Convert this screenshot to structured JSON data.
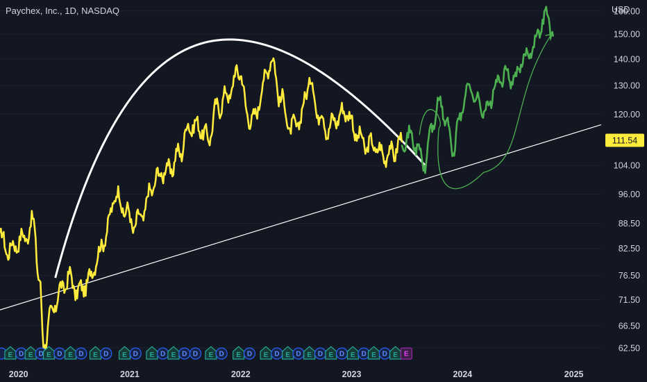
{
  "header": {
    "title": "Paychex, Inc., 1D, NASDAQ",
    "currency": "USD"
  },
  "price_badge": "111.54",
  "colors": {
    "background": "#131722",
    "historical_series": "#ffeb3b",
    "projection_series": "#4caf50",
    "arc": "#ffffff",
    "trendline": "#ffffff",
    "price_badge": "#ffeb3b",
    "dividend_badge": "#2962ff",
    "earnings_badge": "#26a69a",
    "upcoming_earnings_badge": "#9c27b0"
  },
  "chart_data": {
    "type": "line",
    "title": "Paychex, Inc., 1D, NASDAQ",
    "ylabel": "USD",
    "y_scale": "log",
    "ylim": [
      60,
      165
    ],
    "xlim": [
      "2019-11-01",
      "2025-04-01"
    ],
    "x_ticks": [
      "2020",
      "2021",
      "2022",
      "2023",
      "2024",
      "2025"
    ],
    "y_ticks": [
      "62.50",
      "66.50",
      "71.50",
      "76.50",
      "82.50",
      "88.50",
      "96.00",
      "104.00",
      "111.54",
      "120.00",
      "130.00",
      "140.00",
      "150.00",
      "160.00"
    ],
    "series": [
      {
        "role": "historical",
        "color": "#ffeb3b",
        "x": [
          "2019-11-01",
          "2019-12-01",
          "2020-01-01",
          "2020-02-01",
          "2020-02-20",
          "2020-03-10",
          "2020-03-23",
          "2020-04-15",
          "2020-05-15",
          "2020-06-15",
          "2020-07-15",
          "2020-08-15",
          "2020-09-15",
          "2020-10-15",
          "2020-11-15",
          "2020-12-15",
          "2021-01-15",
          "2021-02-15",
          "2021-03-15",
          "2021-04-15",
          "2021-05-15",
          "2021-06-15",
          "2021-07-15",
          "2021-08-15",
          "2021-09-15",
          "2021-10-15",
          "2021-11-15",
          "2021-12-31",
          "2022-01-20",
          "2022-02-15",
          "2022-03-15",
          "2022-04-10",
          "2022-05-15",
          "2022-06-15",
          "2022-07-15",
          "2022-08-15",
          "2022-09-15",
          "2022-10-15",
          "2022-11-15",
          "2022-12-15",
          "2023-01-15",
          "2023-02-15",
          "2023-03-15",
          "2023-04-15",
          "2023-05-15",
          "2023-06-15"
        ],
        "y": [
          85,
          82,
          84,
          86,
          89,
          75,
          63,
          68,
          73,
          76,
          73,
          75,
          80,
          86,
          96,
          92,
          88,
          91,
          98,
          102,
          103,
          108,
          116,
          116,
          112,
          122,
          126,
          136,
          120,
          118,
          130,
          140,
          125,
          115,
          118,
          132,
          120,
          115,
          119,
          121,
          114,
          110,
          110,
          107,
          108,
          111
        ]
      },
      {
        "role": "projection",
        "color": "#4caf50",
        "x": [
          "2023-06-15",
          "2023-07-15",
          "2023-08-10",
          "2023-08-31",
          "2023-09-20",
          "2023-10-20",
          "2023-11-10",
          "2023-12-01",
          "2023-12-20",
          "2024-01-20",
          "2024-02-20",
          "2024-03-20",
          "2024-04-20",
          "2024-05-20",
          "2024-06-20",
          "2024-07-20",
          "2024-08-20",
          "2024-09-20",
          "2024-10-05",
          "2024-10-25"
        ],
        "y": [
          111,
          113,
          108,
          104,
          116,
          124,
          117,
          108,
          118,
          130,
          124,
          121,
          130,
          134,
          132,
          140,
          145,
          155,
          159,
          149
        ]
      }
    ],
    "annotations": [
      {
        "kind": "arc",
        "from": [
          "2020-05-01",
          76
        ],
        "peak": [
          "2022-06-01",
          145
        ],
        "to": [
          "2023-08-31",
          104
        ]
      },
      {
        "kind": "trendline",
        "from": [
          "2019-11-01",
          69.5
        ],
        "to": [
          "2025-04-01",
          116.5
        ]
      },
      {
        "kind": "curved-arrow",
        "from": [
          "2023-10-15",
          120
        ],
        "via": [
          "2024-01-01",
          100
        ],
        "to": [
          "2024-10-20",
          150
        ]
      }
    ],
    "events": [
      {
        "date": "2019-11-05",
        "label": ""
      },
      {
        "date": "2019-12-05",
        "label": "E"
      },
      {
        "date": "2020-01-10",
        "label": "D"
      },
      {
        "date": "2020-02-10",
        "label": "E"
      },
      {
        "date": "2020-03-15",
        "label": "D"
      },
      {
        "date": "2020-04-10",
        "label": "E"
      },
      {
        "date": "2020-05-15",
        "label": "D"
      },
      {
        "date": "2020-06-20",
        "label": "E"
      },
      {
        "date": "2020-07-25",
        "label": "D"
      },
      {
        "date": "2020-09-10",
        "label": "E"
      },
      {
        "date": "2020-10-15",
        "label": "D"
      },
      {
        "date": "2020-12-15",
        "label": "E"
      },
      {
        "date": "2021-01-20",
        "label": "D"
      },
      {
        "date": "2021-03-15",
        "label": "E"
      },
      {
        "date": "2021-04-20",
        "label": "D"
      },
      {
        "date": "2021-05-25",
        "label": "E"
      },
      {
        "date": "2021-06-30",
        "label": "D"
      },
      {
        "date": "2021-08-05",
        "label": "D"
      },
      {
        "date": "2021-09-25",
        "label": "E"
      },
      {
        "date": "2021-10-30",
        "label": "D"
      },
      {
        "date": "2021-12-25",
        "label": "E"
      },
      {
        "date": "2022-01-30",
        "label": "D"
      },
      {
        "date": "2022-03-25",
        "label": "E"
      },
      {
        "date": "2022-04-30",
        "label": "D"
      },
      {
        "date": "2022-06-05",
        "label": "E"
      },
      {
        "date": "2022-07-10",
        "label": "D"
      },
      {
        "date": "2022-08-15",
        "label": "E"
      },
      {
        "date": "2022-09-20",
        "label": "D"
      },
      {
        "date": "2022-10-25",
        "label": "E"
      },
      {
        "date": "2022-11-30",
        "label": "D"
      },
      {
        "date": "2023-01-05",
        "label": "E"
      },
      {
        "date": "2023-02-10",
        "label": "D"
      },
      {
        "date": "2023-03-15",
        "label": "E"
      },
      {
        "date": "2023-04-20",
        "label": "D"
      },
      {
        "date": "2023-05-25",
        "label": "E"
      },
      {
        "date": "2023-06-30",
        "label": "E",
        "upcoming": true
      }
    ]
  }
}
